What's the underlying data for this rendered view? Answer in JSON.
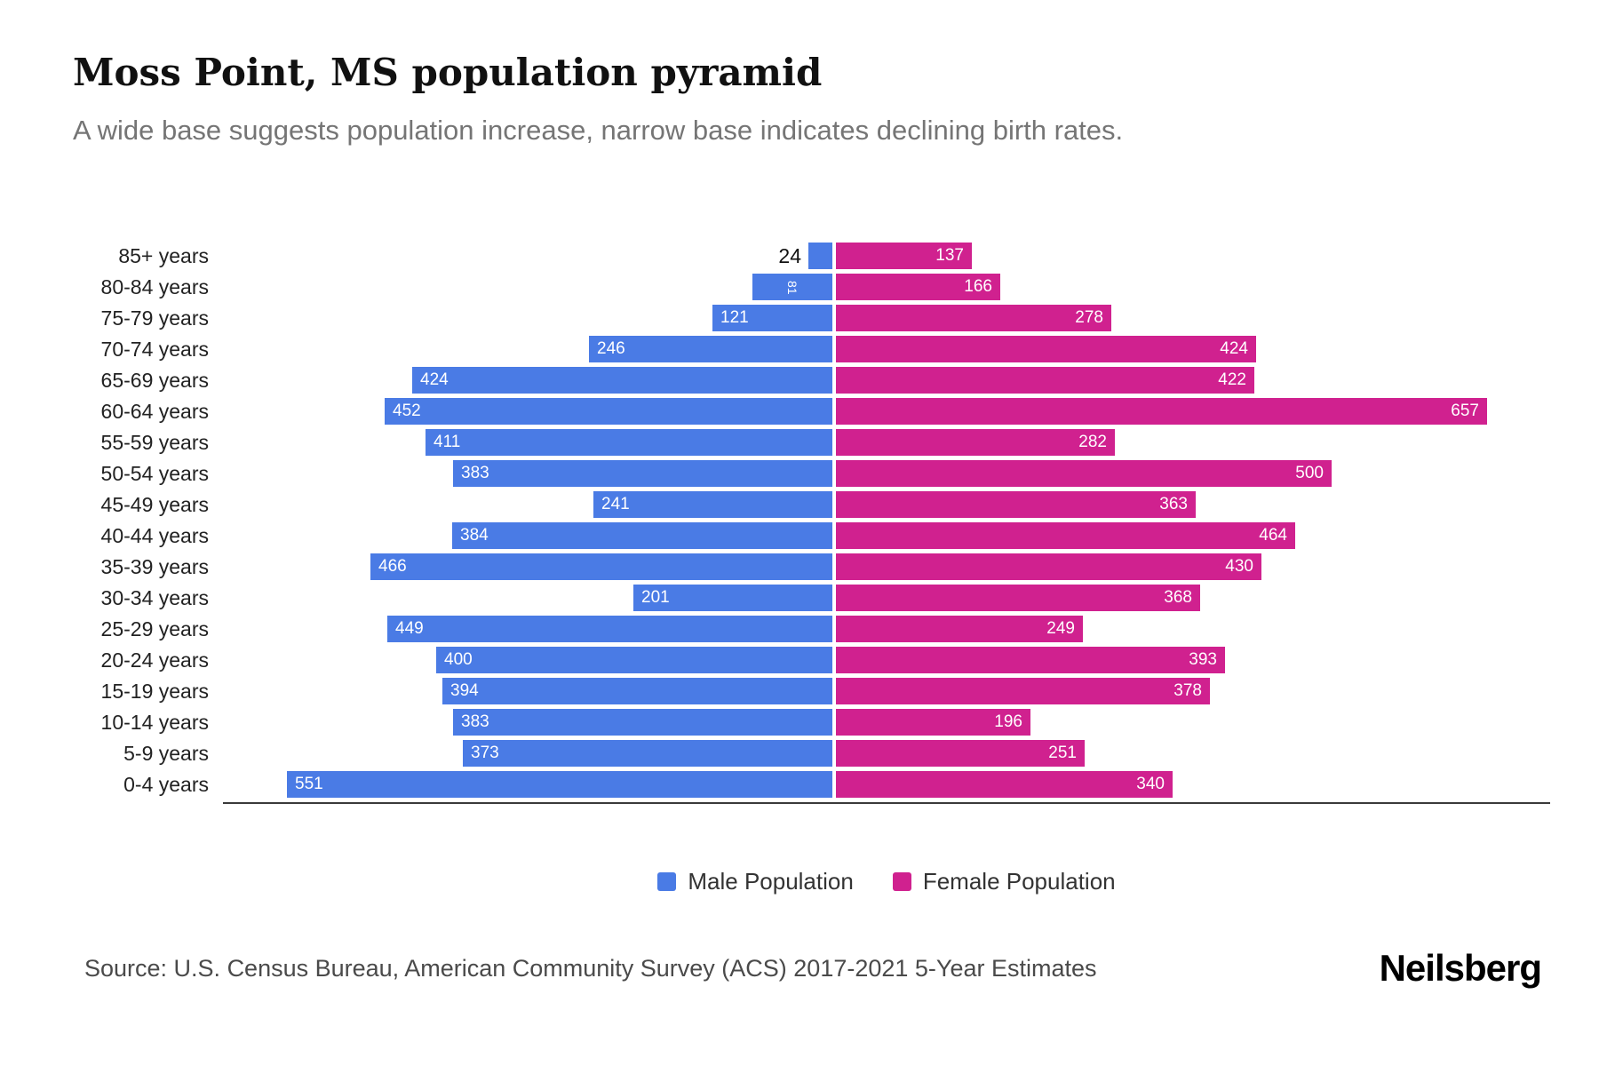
{
  "header": {
    "title": "Moss Point, MS population pyramid",
    "subtitle": "A wide base suggests population increase, narrow base indicates declining birth rates."
  },
  "chart_data": {
    "type": "bar",
    "variant": "population-pyramid",
    "orientation": "horizontal",
    "categories": [
      "85+ years",
      "80-84 years",
      "75-79 years",
      "70-74 years",
      "65-69 years",
      "60-64 years",
      "55-59 years",
      "50-54 years",
      "45-49 years",
      "40-44 years",
      "35-39 years",
      "30-34 years",
      "25-29 years",
      "20-24 years",
      "15-19 years",
      "10-14 years",
      "5-9 years",
      "0-4 years"
    ],
    "series": [
      {
        "name": "Male Population",
        "color": "#4A7BE5",
        "values": [
          24,
          81,
          121,
          246,
          424,
          452,
          411,
          383,
          241,
          384,
          466,
          201,
          449,
          400,
          394,
          383,
          373,
          551
        ]
      },
      {
        "name": "Female Population",
        "color": "#D0218F",
        "values": [
          137,
          166,
          278,
          424,
          422,
          657,
          282,
          500,
          363,
          464,
          430,
          368,
          249,
          393,
          378,
          196,
          251,
          340
        ]
      }
    ],
    "value_axis_range_each_side": [
      0,
      700
    ],
    "grid": false,
    "legend_position": "bottom",
    "value_labels": "shown on bars"
  },
  "legend": {
    "male_label": "Male Population",
    "female_label": "Female Population"
  },
  "footer": {
    "source": "Source: U.S. Census Bureau, American Community Survey (ACS) 2017-2021 5-Year Estimates",
    "logo": "Neilsberg"
  }
}
